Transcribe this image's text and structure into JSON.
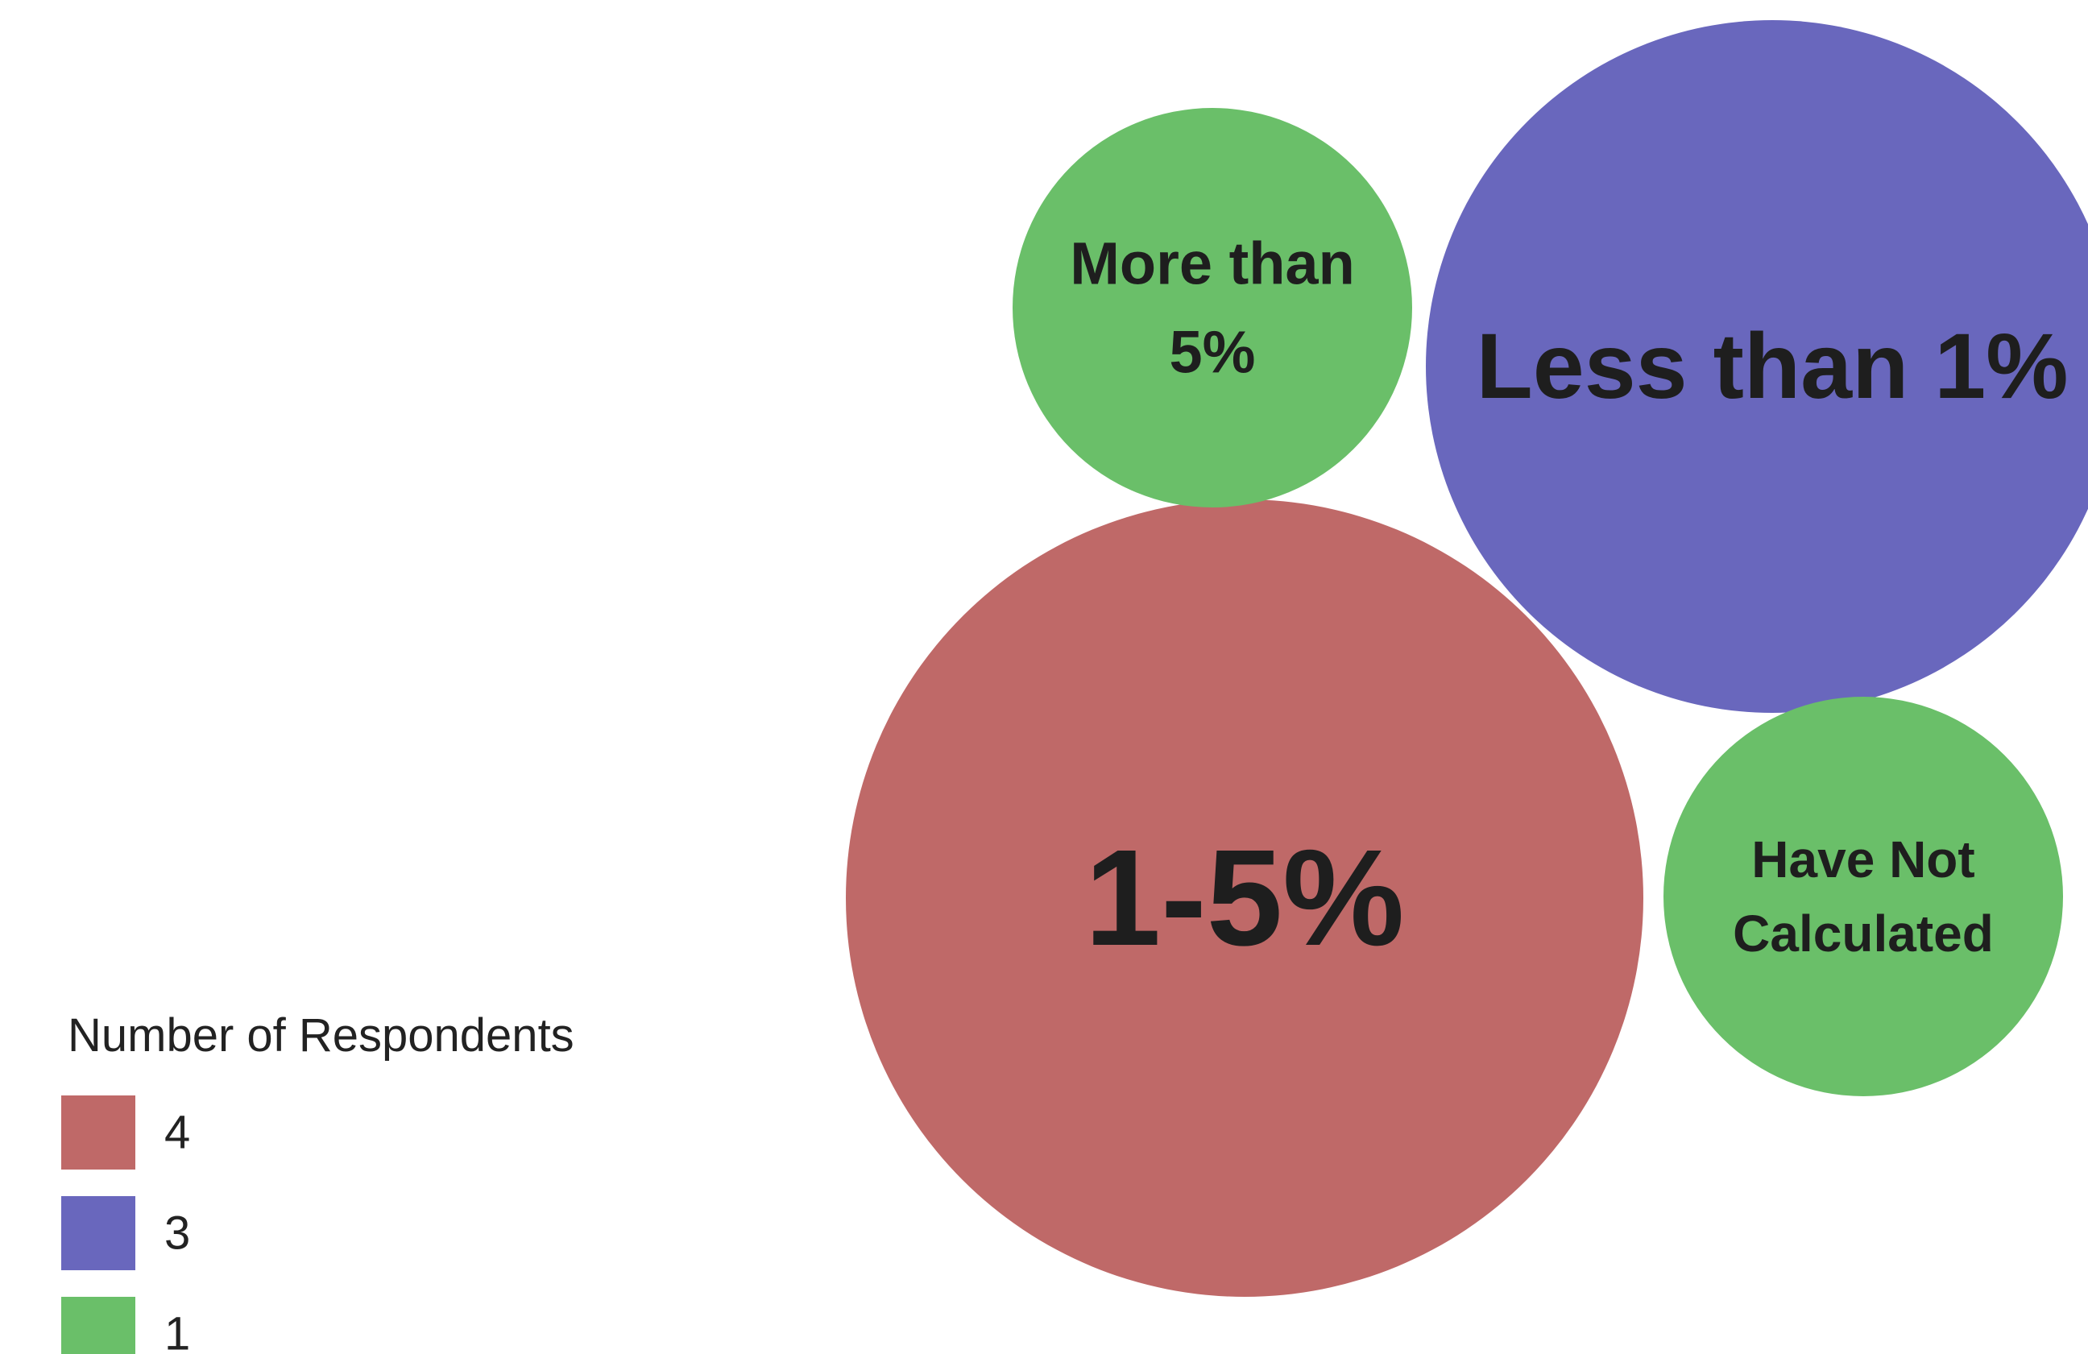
{
  "chart_data": {
    "type": "bubble",
    "title": "",
    "legend": {
      "title": "Number of Respondents",
      "placement": "bottom-left",
      "entries": [
        {
          "label": "4",
          "value": 4,
          "color": "#bf6968"
        },
        {
          "label": "3",
          "value": 3,
          "color": "#6967bd"
        },
        {
          "label": "1",
          "value": 1,
          "color": "#6abf69"
        }
      ]
    },
    "bubbles": [
      {
        "category": "1-5%",
        "lines": [
          "1-5%"
        ],
        "value": 4,
        "color": "#bf6968"
      },
      {
        "category": "Less than 1%",
        "lines": [
          "Less than 1%"
        ],
        "value": 3,
        "color": "#6967bd"
      },
      {
        "category": "More than 5%",
        "lines": [
          "More than",
          "5%"
        ],
        "value": 1,
        "color": "#6abf69"
      },
      {
        "category": "Have Not Calculated",
        "lines": [
          "Have Not",
          "Calculated"
        ],
        "value": 1,
        "color": "#6abf69"
      }
    ]
  }
}
